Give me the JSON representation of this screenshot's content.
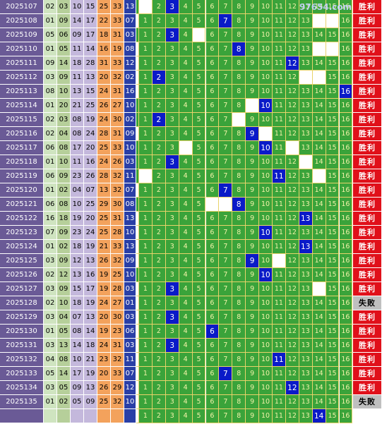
{
  "watermark": "97654.com",
  "rows": [
    {
      "issue": "2025107",
      "nums": [
        "02",
        "03",
        "10",
        "15",
        "25",
        "33"
      ],
      "blue": "13",
      "hits": [
        3
      ],
      "result": "胜利"
    },
    {
      "issue": "2025108",
      "nums": [
        "01",
        "09",
        "14",
        "17",
        "22",
        "33"
      ],
      "blue": "07",
      "hits": [
        7
      ],
      "result": "胜利"
    },
    {
      "issue": "2025109",
      "nums": [
        "05",
        "06",
        "09",
        "17",
        "18",
        "31"
      ],
      "blue": "03",
      "hits": [
        3
      ],
      "result": "胜利"
    },
    {
      "issue": "2025110",
      "nums": [
        "01",
        "05",
        "11",
        "14",
        "16",
        "19"
      ],
      "blue": "08",
      "hits": [
        8
      ],
      "result": "胜利"
    },
    {
      "issue": "2025111",
      "nums": [
        "09",
        "14",
        "18",
        "28",
        "31",
        "33"
      ],
      "blue": "12",
      "hits": [
        12
      ],
      "result": "胜利"
    },
    {
      "issue": "2025112",
      "nums": [
        "03",
        "09",
        "11",
        "13",
        "20",
        "32"
      ],
      "blue": "02",
      "hits": [
        2
      ],
      "result": "胜利"
    },
    {
      "issue": "2025113",
      "nums": [
        "08",
        "10",
        "13",
        "15",
        "24",
        "31"
      ],
      "blue": "16",
      "hits": [
        16
      ],
      "result": "胜利"
    },
    {
      "issue": "2025114",
      "nums": [
        "01",
        "20",
        "21",
        "25",
        "26",
        "27"
      ],
      "blue": "10",
      "hits": [
        10
      ],
      "result": "胜利"
    },
    {
      "issue": "2025115",
      "nums": [
        "02",
        "03",
        "08",
        "19",
        "24",
        "30"
      ],
      "blue": "02",
      "hits": [
        2
      ],
      "result": "胜利"
    },
    {
      "issue": "2025116",
      "nums": [
        "02",
        "04",
        "08",
        "24",
        "28",
        "31"
      ],
      "blue": "09",
      "hits": [
        9
      ],
      "result": "胜利"
    },
    {
      "issue": "2025117",
      "nums": [
        "06",
        "08",
        "17",
        "20",
        "25",
        "33"
      ],
      "blue": "10",
      "hits": [
        10
      ],
      "result": "胜利"
    },
    {
      "issue": "2025118",
      "nums": [
        "01",
        "10",
        "11",
        "16",
        "24",
        "26"
      ],
      "blue": "03",
      "hits": [
        3
      ],
      "result": "胜利"
    },
    {
      "issue": "2025119",
      "nums": [
        "06",
        "09",
        "23",
        "26",
        "28",
        "32"
      ],
      "blue": "11",
      "hits": [
        11
      ],
      "result": "胜利"
    },
    {
      "issue": "2025120",
      "nums": [
        "01",
        "02",
        "04",
        "07",
        "13",
        "32"
      ],
      "blue": "07",
      "hits": [
        7
      ],
      "result": "胜利"
    },
    {
      "issue": "2025121",
      "nums": [
        "06",
        "08",
        "10",
        "25",
        "29",
        "30"
      ],
      "blue": "08",
      "hits": [
        8
      ],
      "result": "胜利"
    },
    {
      "issue": "2025122",
      "nums": [
        "16",
        "18",
        "19",
        "20",
        "25",
        "31"
      ],
      "blue": "13",
      "hits": [
        13
      ],
      "result": "胜利"
    },
    {
      "issue": "2025123",
      "nums": [
        "07",
        "09",
        "23",
        "24",
        "25",
        "28"
      ],
      "blue": "10",
      "hits": [
        10
      ],
      "result": "胜利"
    },
    {
      "issue": "2025124",
      "nums": [
        "01",
        "02",
        "18",
        "19",
        "21",
        "33"
      ],
      "blue": "13",
      "hits": [
        13
      ],
      "result": "胜利"
    },
    {
      "issue": "2025125",
      "nums": [
        "03",
        "09",
        "12",
        "13",
        "26",
        "32"
      ],
      "blue": "09",
      "hits": [
        9
      ],
      "result": "胜利"
    },
    {
      "issue": "2025126",
      "nums": [
        "02",
        "12",
        "13",
        "16",
        "19",
        "25"
      ],
      "blue": "10",
      "hits": [
        10
      ],
      "result": "胜利"
    },
    {
      "issue": "2025127",
      "nums": [
        "03",
        "09",
        "15",
        "17",
        "19",
        "28"
      ],
      "blue": "03",
      "hits": [
        3
      ],
      "result": "胜利"
    },
    {
      "issue": "2025128",
      "nums": [
        "02",
        "10",
        "18",
        "19",
        "24",
        "27"
      ],
      "blue": "01",
      "hits": [],
      "result": "失败"
    },
    {
      "issue": "2025129",
      "nums": [
        "03",
        "04",
        "07",
        "13",
        "20",
        "30"
      ],
      "blue": "03",
      "hits": [
        3
      ],
      "result": "胜利"
    },
    {
      "issue": "2025130",
      "nums": [
        "01",
        "05",
        "08",
        "14",
        "19",
        "23"
      ],
      "blue": "06",
      "hits": [
        6
      ],
      "result": "胜利"
    },
    {
      "issue": "2025131",
      "nums": [
        "03",
        "13",
        "14",
        "18",
        "24",
        "31"
      ],
      "blue": "03",
      "hits": [
        3
      ],
      "result": "胜利"
    },
    {
      "issue": "2025132",
      "nums": [
        "04",
        "08",
        "10",
        "21",
        "23",
        "32"
      ],
      "blue": "11",
      "hits": [
        11
      ],
      "result": "胜利"
    },
    {
      "issue": "2025133",
      "nums": [
        "05",
        "14",
        "17",
        "19",
        "20",
        "33"
      ],
      "blue": "07",
      "hits": [
        7
      ],
      "result": "胜利"
    },
    {
      "issue": "2025134",
      "nums": [
        "03",
        "05",
        "09",
        "13",
        "26",
        "29"
      ],
      "blue": "12",
      "hits": [
        12
      ],
      "result": "胜利"
    },
    {
      "issue": "2025135",
      "nums": [
        "01",
        "02",
        "05",
        "09",
        "25",
        "32"
      ],
      "blue": "10",
      "hits": [],
      "result": "失败"
    },
    {
      "issue": "",
      "nums": [
        "",
        "",
        "",
        "",
        "",
        ""
      ],
      "blue": "",
      "hits": [
        14
      ],
      "result": ""
    }
  ],
  "whiteCells": [
    [
      1
    ],
    [
      0,
      14,
      15
    ],
    [
      5
    ],
    [
      0,
      14,
      15
    ],
    [
      0
    ],
    [
      0,
      13,
      14
    ],
    [
      0
    ],
    [
      9
    ],
    [
      8
    ],
    [
      0,
      10
    ],
    [
      4,
      12
    ],
    [
      13
    ],
    [
      1,
      14
    ],
    [
      0
    ],
    [
      6,
      7
    ],
    [
      0
    ],
    [
      0
    ],
    [
      0
    ],
    [
      0,
      11
    ],
    [],
    [
      0,
      14
    ],
    [
      0
    ],
    [
      0
    ],
    [
      0
    ],
    [
      0
    ],
    [
      0
    ],
    [
      0
    ],
    [
      0
    ],
    [
      0
    ],
    [
      0
    ]
  ],
  "colors": {
    "issue_bg": "#6a5a96",
    "grid_green": "#3aa33a",
    "hit_blue": "#0a1ac8",
    "win_red": "#e0101a",
    "lose_gray": "#bfbfbf"
  }
}
